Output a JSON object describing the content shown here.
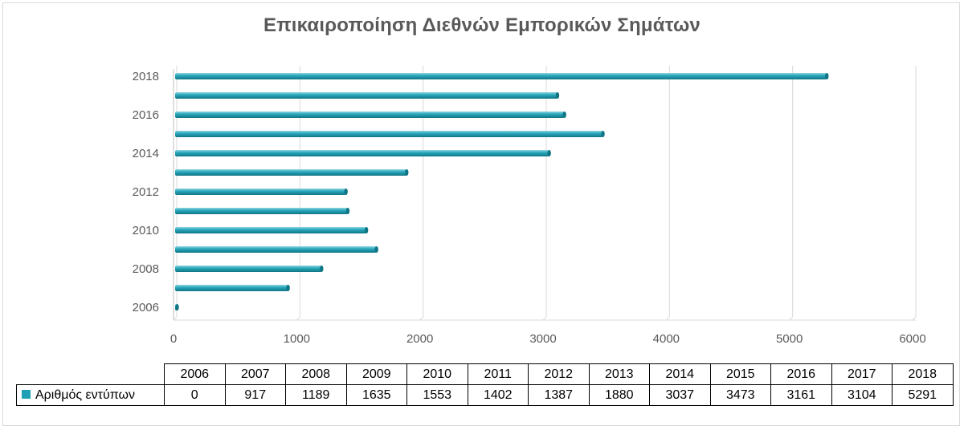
{
  "chart_data": {
    "type": "bar",
    "orientation": "horizontal",
    "title": "Επικαιροποίηση  Διεθνών Εμπορικών Σημάτων",
    "categories": [
      "2006",
      "2007",
      "2008",
      "2009",
      "2010",
      "2011",
      "2012",
      "2013",
      "2014",
      "2015",
      "2016",
      "2017",
      "2018"
    ],
    "series": [
      {
        "name": "Αριθμός εντύπων",
        "values": [
          0,
          917,
          1189,
          1635,
          1553,
          1402,
          1387,
          1880,
          3037,
          3473,
          3161,
          3104,
          5291
        ]
      }
    ],
    "y_tick_labels": [
      "2006",
      "2008",
      "2010",
      "2012",
      "2014",
      "2016",
      "2018"
    ],
    "x_ticks": [
      0,
      1000,
      2000,
      3000,
      4000,
      5000,
      6000
    ],
    "xlim": [
      0,
      6000
    ],
    "grid": true,
    "legend": "data-table-below",
    "bar_color": "#1fa0b4"
  }
}
